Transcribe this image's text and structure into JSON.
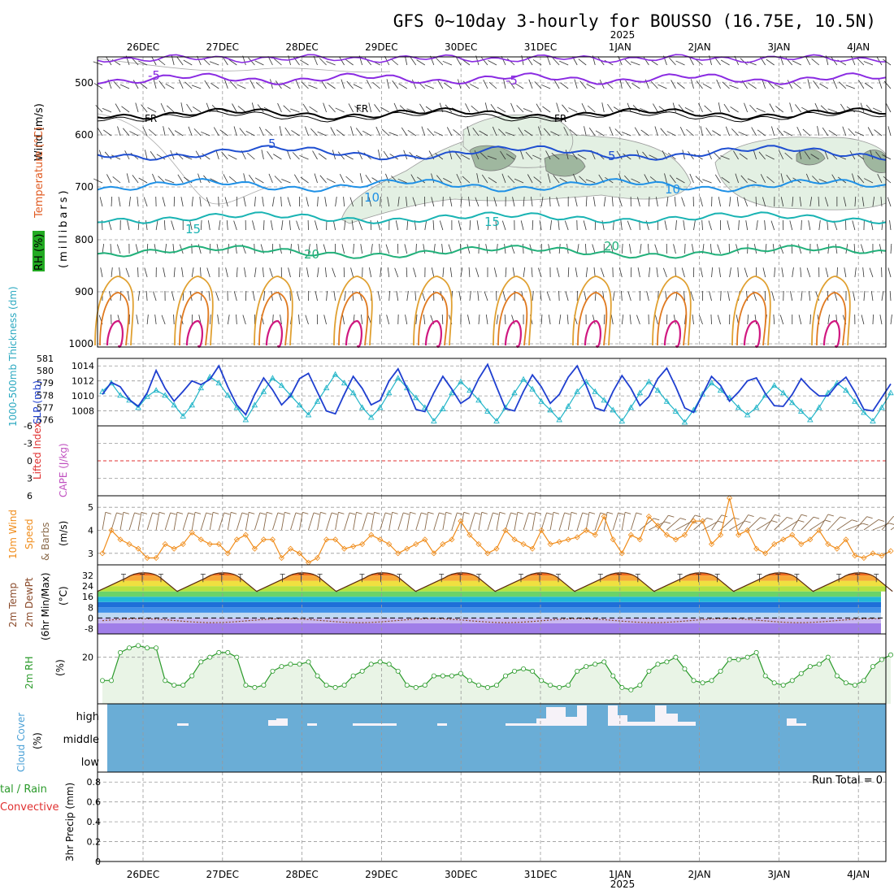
{
  "title": "GFS 0~10day 3-hourly for BOUSSO (16.75E, 10.5N)",
  "year_label": "2025",
  "date_labels": [
    "26DEC",
    "27DEC",
    "28DEC",
    "29DEC",
    "30DEC",
    "31DEC",
    "1JAN",
    "2JAN",
    "3JAN",
    "4JAN"
  ],
  "colors": {
    "temp_neg5": "#8a2be2",
    "temp_0": "#000000",
    "temp_5": "#1f4fd1",
    "temp_10": "#1e90e6",
    "temp_15": "#19b3b3",
    "temp_20": "#21b07a",
    "temp_25": "#e0a030",
    "temp_30": "#e07a20",
    "temp_35": "#d01880",
    "rh_fill": "#e3f0e3",
    "slp": "#1f3fd0",
    "thickness": "#22b5c8",
    "wind10m": "#f08c1a",
    "rh2m": "#2a9a2a",
    "cloud": "#6aadd6",
    "grid": "#999999"
  },
  "panels": {
    "upper": {
      "ylabels": {
        "wind": "Wind (m/s)",
        "temp": "Temperature (°C)",
        "rh": "RH (%)",
        "mb": "(millibars)"
      },
      "pressure_ticks": [
        "500",
        "600",
        "700",
        "800",
        "900",
        "1000"
      ]
    },
    "slp": {
      "label_thickness": "1000-500mb Thickness (dm)",
      "label_slp": "SLP (mb)",
      "thick_ticks": [
        "581",
        "580",
        "579",
        "578",
        "577",
        "576"
      ],
      "slp_ticks": [
        "1014",
        "1012",
        "1010",
        "1008"
      ]
    },
    "cape": {
      "label_li": "Lifted Index",
      "label_cape": "CAPE (J/kg)",
      "ticks": [
        "-6",
        "-3",
        "0",
        "3",
        "6"
      ]
    },
    "wind": {
      "label1": "10m Wind",
      "label2": "Speed",
      "label3": "& Barbs",
      "units": "(m/s)",
      "ticks": [
        "5",
        "4",
        "3"
      ]
    },
    "temp": {
      "label1": "2m Temp",
      "label2": "2m DewPt",
      "label3": "(6hr Min/Max)",
      "units": "(°C)",
      "ticks": [
        "32",
        "24",
        "16",
        "8",
        "0",
        "-8"
      ]
    },
    "rh": {
      "label": "2m RH",
      "units": "(%)",
      "ticks": [
        "20"
      ]
    },
    "cloud": {
      "label": "Cloud Cover",
      "units": "(%)",
      "levels": [
        "high",
        "middle",
        "low"
      ]
    },
    "precip": {
      "label_total": "tal / Rain",
      "label_conv": "Convective",
      "label_axis": "3hr Precip (mm)",
      "run_total": "Run Total = 0",
      "ticks": [
        "0.8",
        "0.6",
        "0.4",
        "0.2",
        "0"
      ]
    }
  },
  "chart_data": [
    {
      "type": "line",
      "title": "1000-500mb Thickness (dm) & SLP (mb)",
      "series": [
        {
          "name": "SLP (mb)",
          "values": [
            1010.2,
            1011.8,
            1011.2,
            1009.5,
            1008.6,
            1010.4,
            1013.4,
            1011.0,
            1009.3,
            1010.6,
            1012.0,
            1011.5,
            1012.2,
            1014.0,
            1011.2,
            1008.8,
            1007.5,
            1010.2,
            1012.4,
            1010.8,
            1008.8,
            1010.0,
            1012.3,
            1013.0,
            1010.5,
            1008.0,
            1007.6,
            1010.2,
            1012.6,
            1011.0,
            1008.8,
            1009.4,
            1012.0,
            1013.6,
            1011.0,
            1008.2,
            1007.9,
            1010.4,
            1012.6,
            1010.9,
            1009.0,
            1009.8,
            1012.3,
            1014.2,
            1011.2,
            1008.3,
            1008.0,
            1010.6,
            1012.8,
            1011.2,
            1009.0,
            1010.2,
            1012.5,
            1014.0,
            1011.4,
            1008.4,
            1008.0,
            1010.6,
            1012.7,
            1011.0,
            1008.7,
            1009.9,
            1012.3,
            1013.7,
            1011.2,
            1008.4,
            1007.8,
            1010.2,
            1012.6,
            1011.4,
            1009.3,
            1010.5,
            1012.0,
            1012.4,
            1010.3,
            1008.7,
            1008.6,
            1010.2,
            1012.3,
            1011.0,
            1010.0,
            1010.0,
            1011.5,
            1012.5,
            1010.5,
            1008.2,
            1008.0,
            1009.8,
            1011.6
          ]
        },
        {
          "name": "1000-500mb Thickness (dm)",
          "values": [
            578.3,
            579.0,
            578.0,
            577.6,
            577.0,
            577.9,
            578.4,
            578.0,
            577.2,
            576.3,
            577.2,
            578.6,
            579.5,
            579.0,
            578.0,
            577.0,
            576.0,
            577.2,
            578.3,
            579.4,
            578.8,
            578.0,
            577.2,
            576.4,
            577.5,
            578.6,
            579.7,
            579.0,
            578.2,
            577.0,
            576.2,
            577.0,
            578.2,
            579.4,
            578.6,
            577.8,
            577.0,
            575.9,
            576.9,
            578.2,
            579.1,
            578.4,
            577.6,
            576.7,
            575.9,
            577.0,
            578.2,
            579.3,
            578.5,
            577.5,
            576.8,
            576.0,
            577.1,
            578.3,
            579.1,
            578.3,
            577.6,
            576.8,
            575.9,
            577.0,
            578.2,
            579.1,
            578.4,
            577.5,
            576.7,
            575.8,
            576.8,
            578.1,
            579.0,
            578.4,
            577.8,
            577.0,
            576.4,
            577.0,
            578.0,
            578.8,
            578.2,
            577.4,
            576.7,
            576.0,
            577.0,
            578.2,
            579.0,
            578.4,
            577.5,
            576.6,
            575.9,
            577.0,
            578.2
          ]
        }
      ],
      "ylim_slp": [
        1006,
        1015
      ],
      "ylim_thickness": [
        575.5,
        581
      ]
    },
    {
      "type": "line",
      "title": "10m Wind Speed (m/s)",
      "series": [
        {
          "name": "10m Wind Speed",
          "values": [
            3.0,
            4.0,
            3.6,
            3.4,
            3.2,
            2.8,
            2.8,
            3.4,
            3.2,
            3.4,
            3.9,
            3.6,
            3.4,
            3.4,
            3.0,
            3.6,
            3.8,
            3.2,
            3.6,
            3.6,
            2.8,
            3.2,
            3.0,
            2.6,
            2.8,
            3.6,
            3.6,
            3.2,
            3.3,
            3.4,
            3.8,
            3.6,
            3.4,
            3.0,
            3.2,
            3.4,
            3.6,
            3.0,
            3.4,
            3.6,
            4.4,
            3.8,
            3.4,
            3.0,
            3.2,
            4.0,
            3.6,
            3.4,
            3.2,
            4.0,
            3.4,
            3.5,
            3.6,
            3.7,
            4.0,
            3.8,
            4.6,
            3.6,
            3.0,
            3.8,
            3.6,
            4.6,
            4.2,
            3.8,
            3.6,
            3.8,
            4.4,
            4.4,
            3.4,
            3.8,
            5.4,
            3.8,
            4.0,
            3.2,
            3.0,
            3.4,
            3.6,
            3.8,
            3.4,
            3.6,
            4.0,
            3.4,
            3.2,
            3.6,
            2.9,
            2.8,
            3.0,
            2.9,
            3.1
          ]
        }
      ],
      "ylim": [
        2.5,
        5.5
      ]
    },
    {
      "type": "line",
      "title": "2m RH (%)",
      "series": [
        {
          "name": "2m RH",
          "values": [
            10,
            10,
            22,
            24,
            25,
            24,
            24,
            10,
            8,
            8,
            12,
            18,
            20,
            22,
            22,
            20,
            8,
            7,
            8,
            14,
            16,
            17,
            17,
            18,
            12,
            8,
            7,
            8,
            12,
            14,
            17,
            18,
            17,
            14,
            8,
            7,
            8,
            12,
            12,
            12,
            13,
            10,
            8,
            7,
            8,
            12,
            14,
            15,
            14,
            10,
            8,
            7,
            8,
            14,
            16,
            17,
            18,
            12,
            7,
            6,
            8,
            14,
            17,
            18,
            20,
            15,
            10,
            9,
            10,
            14,
            19,
            19,
            20,
            22,
            12,
            9,
            8,
            10,
            13,
            16,
            17,
            20,
            12,
            9,
            8,
            10,
            16,
            19,
            21
          ]
        }
      ],
      "ylim": [
        0,
        30
      ]
    },
    {
      "type": "line",
      "title": "3hr Precip (mm)",
      "series": [
        {
          "name": "Total / Rain",
          "values": [
            0,
            0,
            0,
            0,
            0,
            0,
            0,
            0,
            0,
            0
          ]
        },
        {
          "name": "Convective",
          "values": [
            0,
            0,
            0,
            0,
            0,
            0,
            0,
            0,
            0,
            0
          ]
        }
      ],
      "ylim": [
        0,
        0.9
      ]
    }
  ]
}
